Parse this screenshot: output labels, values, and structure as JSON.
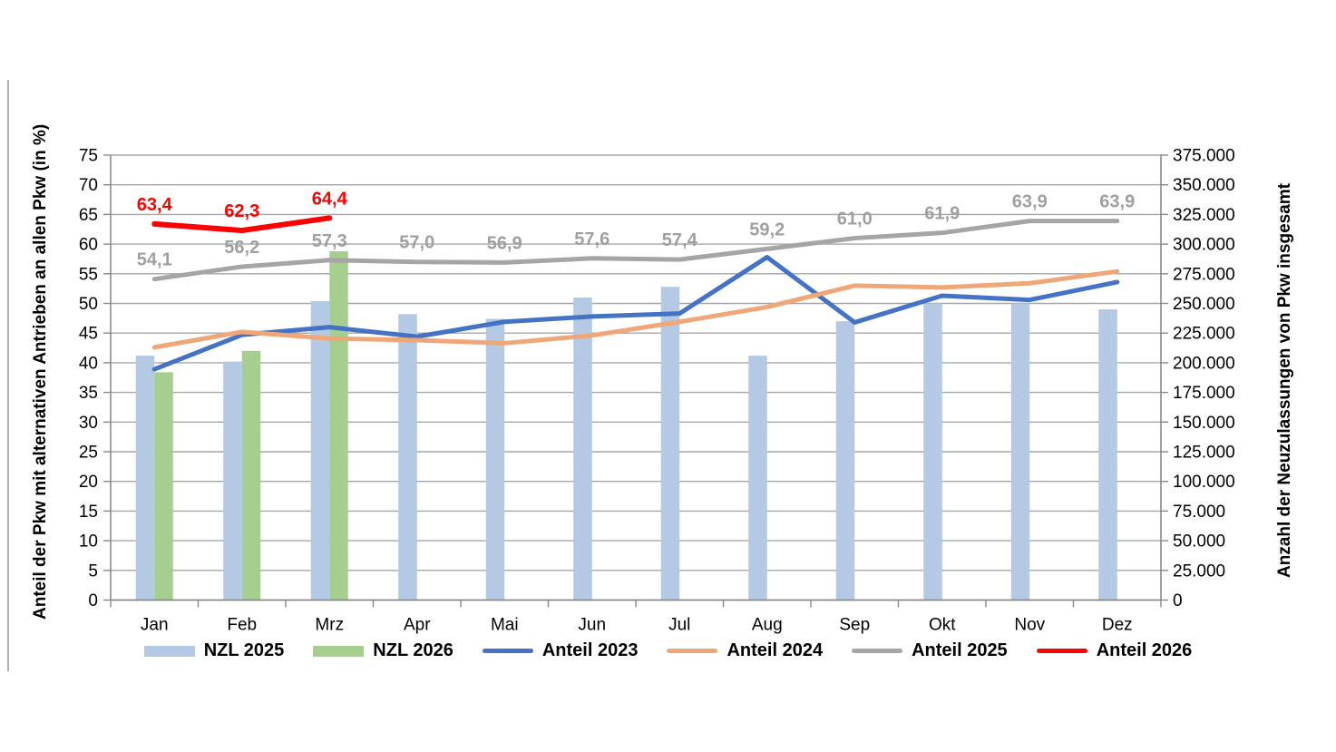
{
  "chart_data": {
    "type": "combo-bar-line",
    "categories": [
      "Jan",
      "Feb",
      "Mrz",
      "Apr",
      "Mai",
      "Jun",
      "Jul",
      "Aug",
      "Sep",
      "Okt",
      "Nov",
      "Dez"
    ],
    "left_axis": {
      "title": "Anteil der Pkw mit alternativen Antrieben an allen Pkw (in %)",
      "min": 0,
      "max": 75,
      "step": 5,
      "tick_labels": [
        "0",
        "5",
        "10",
        "15",
        "20",
        "25",
        "30",
        "35",
        "40",
        "45",
        "50",
        "55",
        "60",
        "65",
        "70",
        "75"
      ]
    },
    "right_axis": {
      "title": "Anzahl der Neuzulassungen von Pkw insgesamt",
      "min": 0,
      "max": 375000,
      "step": 25000,
      "tick_labels": [
        "0",
        "25.000",
        "50.000",
        "75.000",
        "100.000",
        "125.000",
        "150.000",
        "175.000",
        "200.000",
        "225.000",
        "250.000",
        "275.000",
        "300.000",
        "325.000",
        "350.000",
        "375.000"
      ]
    },
    "grid": "horizontal-only",
    "legend_position": "bottom",
    "bar_series": [
      {
        "name": "NZL 2025",
        "axis": "right",
        "color": "#B4C9E3",
        "values": [
          206000,
          201000,
          252000,
          241000,
          237000,
          255000,
          264000,
          206000,
          235000,
          250000,
          250000,
          245000
        ]
      },
      {
        "name": "NZL 2026",
        "axis": "right",
        "color": "#A5CE8F",
        "values": [
          192000,
          210000,
          294000,
          null,
          null,
          null,
          null,
          null,
          null,
          null,
          null,
          null
        ]
      }
    ],
    "line_series": [
      {
        "name": "Anteil 2023",
        "axis": "left",
        "color": "#4472C4",
        "width": 5,
        "values": [
          38.9,
          44.7,
          46.0,
          44.4,
          46.9,
          47.8,
          48.3,
          57.8,
          46.8,
          51.3,
          50.6,
          53.6
        ]
      },
      {
        "name": "Anteil 2024",
        "axis": "left",
        "color": "#F0A778",
        "width": 5,
        "values": [
          42.6,
          45.2,
          44.1,
          43.8,
          43.3,
          44.6,
          46.9,
          49.4,
          53.0,
          52.7,
          53.4,
          55.4
        ]
      },
      {
        "name": "Anteil 2025",
        "axis": "left",
        "color": "#A5A5A5",
        "width": 5,
        "values": [
          54.1,
          56.2,
          57.3,
          57.0,
          56.9,
          57.6,
          57.4,
          59.2,
          61.0,
          61.9,
          63.9,
          63.9
        ],
        "labels": [
          "54,1",
          "56,2",
          "57,3",
          "57,0",
          "56,9",
          "57,6",
          "57,4",
          "59,2",
          "61,0",
          "61,9",
          "63,9",
          "63,9"
        ],
        "label_color": "#A0A0A0"
      },
      {
        "name": "Anteil 2026",
        "axis": "left",
        "color": "#FE0000",
        "width": 6,
        "values": [
          63.4,
          62.3,
          64.4,
          null,
          null,
          null,
          null,
          null,
          null,
          null,
          null,
          null
        ],
        "labels": [
          "63,4",
          "62,3",
          "64,4"
        ],
        "label_color": "#FE0000"
      }
    ],
    "legend": [
      {
        "label": "NZL 2025",
        "type": "bar",
        "color": "#B4C9E3"
      },
      {
        "label": "NZL 2026",
        "type": "bar",
        "color": "#A5CE8F"
      },
      {
        "label": "Anteil 2023",
        "type": "line",
        "color": "#4472C4"
      },
      {
        "label": "Anteil 2024",
        "type": "line",
        "color": "#F0A778"
      },
      {
        "label": "Anteil 2025",
        "type": "line",
        "color": "#A5A5A5"
      },
      {
        "label": "Anteil 2026",
        "type": "line",
        "color": "#FE0000"
      }
    ],
    "colors": {
      "gridline": "#A6A6A6",
      "axis_line": "#8A8A8A",
      "tick_text": "#000000"
    }
  }
}
